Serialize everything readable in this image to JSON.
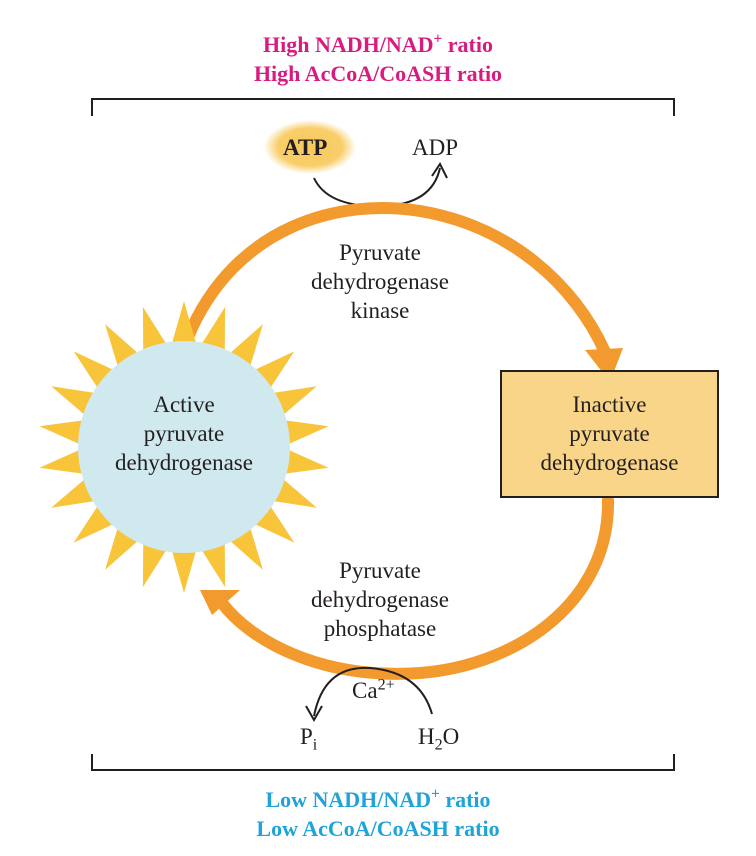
{
  "top": {
    "ratio1": {
      "prefix": "High NADH/NAD",
      "sup": "+",
      "suffix": " ratio"
    },
    "ratio2": "High AcCoA/CoASH ratio",
    "color": "#d81b7f"
  },
  "bottom": {
    "ratio1": {
      "prefix": "Low NADH/NAD",
      "sup": "+",
      "suffix": " ratio"
    },
    "ratio2": "Low AcCoA/CoASH ratio",
    "color": "#1fa3d8"
  },
  "kinase_step": {
    "input": "ATP",
    "output": "ADP",
    "enzyme": [
      "Pyruvate",
      "dehydrogenase",
      "kinase"
    ]
  },
  "phosphatase_step": {
    "cofactor": {
      "base": "Ca",
      "sup": "2+"
    },
    "product": {
      "base": "P",
      "sub": "i"
    },
    "input": {
      "pre": "H",
      "sub": "2",
      "post": "O"
    },
    "enzyme": [
      "Pyruvate",
      "dehydrogenase",
      "phosphatase"
    ]
  },
  "active_enzyme": [
    "Active",
    "pyruvate",
    "dehydrogenase"
  ],
  "inactive_enzyme": [
    "Inactive",
    "pyruvate",
    "dehydrogenase"
  ],
  "colors": {
    "arrow": "#f39a2e",
    "sun": "#f7c43a",
    "circle": "#cfe9ee",
    "box": "#f9d58a",
    "box_border": "#231f20",
    "atp_glow": "#f8c95a"
  }
}
